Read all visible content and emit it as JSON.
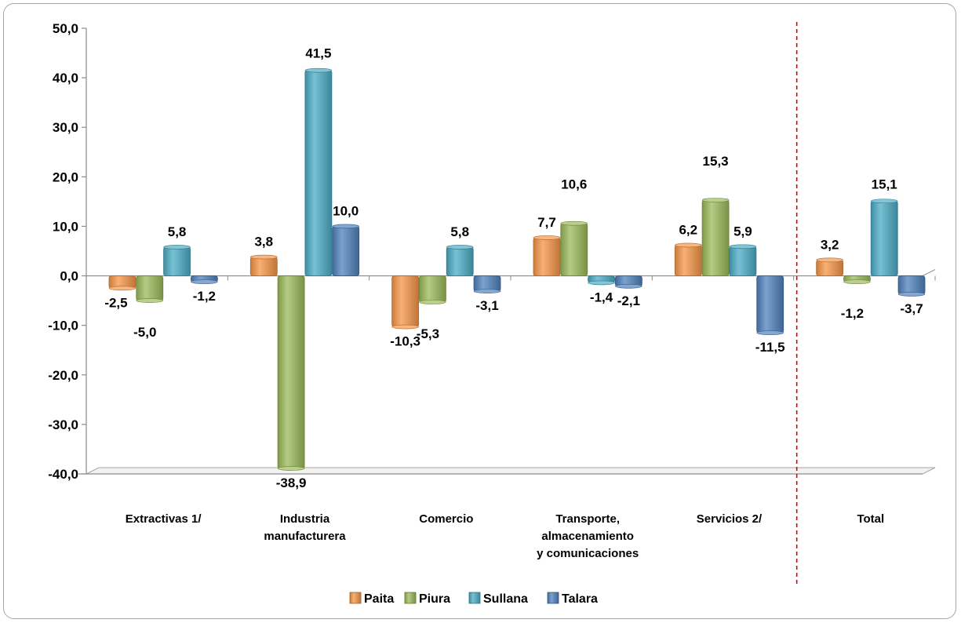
{
  "chart_data": {
    "type": "bar",
    "categories": [
      [
        "Extractivas 1/"
      ],
      [
        "Industria",
        "manufacturera"
      ],
      [
        "Comercio"
      ],
      [
        "Transporte,",
        "almacenamiento",
        "y comunicaciones"
      ],
      [
        "Servicios 2/"
      ],
      [
        "Total"
      ]
    ],
    "series": [
      {
        "name": "Paita",
        "color": "#F79646",
        "values": [
          -2.5,
          3.8,
          -10.3,
          7.7,
          6.2,
          3.2
        ]
      },
      {
        "name": "Piura",
        "color": "#9BBB59",
        "values": [
          -5.0,
          -38.9,
          -5.3,
          10.6,
          15.3,
          -1.2
        ]
      },
      {
        "name": "Sullana",
        "color": "#4BACC6",
        "values": [
          5.8,
          41.5,
          5.8,
          -1.4,
          5.9,
          15.1
        ]
      },
      {
        "name": "Talara",
        "color": "#4F81BD",
        "values": [
          -1.2,
          10.0,
          -3.1,
          -2.1,
          -11.5,
          -3.7
        ]
      }
    ],
    "data_labels": [
      [
        "-2,5",
        "3,8",
        "-10,3",
        "7,7",
        "6,2",
        "3,2"
      ],
      [
        "-5,0",
        "-38,9",
        "-5,3",
        "10,6",
        "15,3",
        "-1,2"
      ],
      [
        "5,8",
        "41,5",
        "5,8",
        "-1,4",
        "5,9",
        "15,1"
      ],
      [
        "-1,2",
        "10,0",
        "-3,1",
        "-2,1",
        "-11,5",
        "-3,7"
      ]
    ],
    "ylim": [
      -40,
      50
    ],
    "yticks": [
      50,
      40,
      30,
      20,
      10,
      0,
      -10,
      -20,
      -30,
      -40
    ],
    "ytick_labels": [
      "50,0",
      "40,0",
      "30,0",
      "20,0",
      "10,0",
      "0,0",
      "-10,0",
      "-20,0",
      "-30,0",
      "-40,0"
    ],
    "separator": {
      "before_category_index": 5,
      "color": "#E00000",
      "style": "dashed"
    },
    "legend_position": "bottom",
    "grid": false,
    "title": "",
    "xlabel": "",
    "ylabel": ""
  }
}
